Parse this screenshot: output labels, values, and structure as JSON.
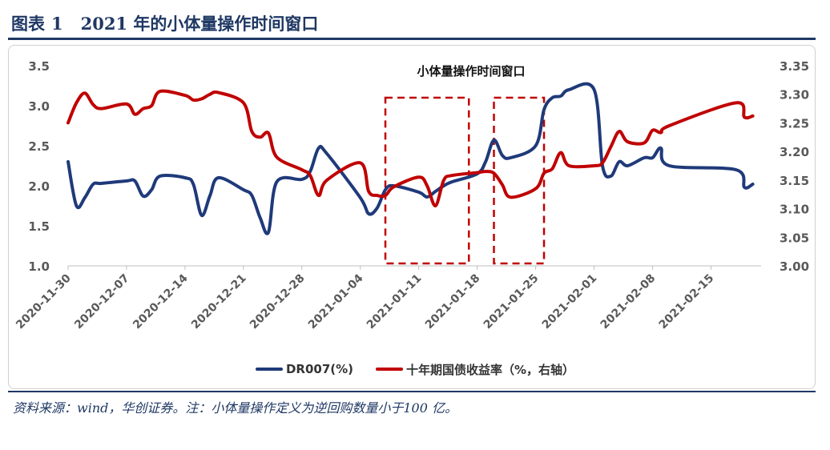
{
  "header": {
    "label": "图表",
    "number": "1",
    "title": "2021 年的小体量操作时间窗口"
  },
  "source": "资料来源：wind，华创证券。注：小体量操作定义为逆回购数量小于100 亿。",
  "chart_data": {
    "type": "line",
    "title": "小体量操作时间窗口",
    "x_start": "2020-11-30",
    "x_end": "2021-02-21",
    "x_ticks": [
      "2020-11-30",
      "2020-12-07",
      "2020-12-14",
      "2020-12-21",
      "2020-12-28",
      "2021-01-04",
      "2021-01-11",
      "2021-01-18",
      "2021-01-25",
      "2021-02-01",
      "2021-02-08",
      "2021-02-15"
    ],
    "y_left": {
      "min": 1.0,
      "max": 3.5,
      "ticks": [
        "1.0",
        "1.5",
        "2.0",
        "2.5",
        "3.0",
        "3.5"
      ]
    },
    "y_right": {
      "min": 3.0,
      "max": 3.35,
      "ticks": [
        "3.00",
        "3.05",
        "3.10",
        "3.15",
        "3.20",
        "3.25",
        "3.30",
        "3.35"
      ]
    },
    "grid": false,
    "legend_position": "bottom",
    "series": [
      {
        "name": "DR007(%)",
        "axis": "left",
        "color": "#1f3a7a",
        "points": [
          [
            "2020-11-30",
            2.3
          ],
          [
            "2020-12-01",
            1.75
          ],
          [
            "2020-12-02",
            1.85
          ],
          [
            "2020-12-03",
            2.02
          ],
          [
            "2020-12-04",
            2.03
          ],
          [
            "2020-12-07",
            2.06
          ],
          [
            "2020-12-08",
            2.06
          ],
          [
            "2020-12-09",
            1.87
          ],
          [
            "2020-12-10",
            1.95
          ],
          [
            "2020-12-11",
            2.12
          ],
          [
            "2020-12-14",
            2.1
          ],
          [
            "2020-12-15",
            2.02
          ],
          [
            "2020-12-16",
            1.63
          ],
          [
            "2020-12-17",
            1.88
          ],
          [
            "2020-12-18",
            2.1
          ],
          [
            "2020-12-21",
            1.95
          ],
          [
            "2020-12-22",
            1.88
          ],
          [
            "2020-12-23",
            1.6
          ],
          [
            "2020-12-24",
            1.42
          ],
          [
            "2020-12-25",
            2.05
          ],
          [
            "2020-12-28",
            2.08
          ],
          [
            "2020-12-29",
            2.18
          ],
          [
            "2020-12-30",
            2.47
          ],
          [
            "2020-12-31",
            2.4
          ],
          [
            "2021-01-04",
            1.85
          ],
          [
            "2021-01-05",
            1.65
          ],
          [
            "2021-01-06",
            1.72
          ],
          [
            "2021-01-07",
            1.95
          ],
          [
            "2021-01-08",
            2.0
          ],
          [
            "2021-01-11",
            1.92
          ],
          [
            "2021-01-12",
            1.86
          ],
          [
            "2021-01-13",
            1.93
          ],
          [
            "2021-01-14",
            2.0
          ],
          [
            "2021-01-15",
            2.05
          ],
          [
            "2021-01-18",
            2.15
          ],
          [
            "2021-01-19",
            2.3
          ],
          [
            "2021-01-20",
            2.57
          ],
          [
            "2021-01-21",
            2.38
          ],
          [
            "2021-01-22",
            2.35
          ],
          [
            "2021-01-25",
            2.5
          ],
          [
            "2021-01-26",
            2.95
          ],
          [
            "2021-01-27",
            3.1
          ],
          [
            "2021-01-28",
            3.12
          ],
          [
            "2021-01-29",
            3.2
          ],
          [
            "2021-02-01",
            3.2
          ],
          [
            "2021-02-02",
            2.25
          ],
          [
            "2021-02-03",
            2.12
          ],
          [
            "2021-02-04",
            2.3
          ],
          [
            "2021-02-05",
            2.25
          ],
          [
            "2021-02-07",
            2.35
          ],
          [
            "2021-02-08",
            2.35
          ],
          [
            "2021-02-09",
            2.47
          ],
          [
            "2021-02-10",
            2.25
          ],
          [
            "2021-02-18",
            2.2
          ],
          [
            "2021-02-19",
            1.98
          ],
          [
            "2021-02-20",
            2.02
          ]
        ]
      },
      {
        "name": "十年期国债收益率（%，右轴）",
        "axis": "right",
        "color": "#c00000",
        "points": [
          [
            "2020-11-30",
            3.25
          ],
          [
            "2020-12-01",
            3.285
          ],
          [
            "2020-12-02",
            3.302
          ],
          [
            "2020-12-03",
            3.282
          ],
          [
            "2020-12-04",
            3.275
          ],
          [
            "2020-12-07",
            3.283
          ],
          [
            "2020-12-08",
            3.265
          ],
          [
            "2020-12-09",
            3.275
          ],
          [
            "2020-12-10",
            3.28
          ],
          [
            "2020-12-11",
            3.305
          ],
          [
            "2020-12-14",
            3.298
          ],
          [
            "2020-12-15",
            3.29
          ],
          [
            "2020-12-16",
            3.292
          ],
          [
            "2020-12-17",
            3.3
          ],
          [
            "2020-12-18",
            3.303
          ],
          [
            "2020-12-21",
            3.285
          ],
          [
            "2020-12-22",
            3.235
          ],
          [
            "2020-12-23",
            3.225
          ],
          [
            "2020-12-24",
            3.232
          ],
          [
            "2020-12-25",
            3.19
          ],
          [
            "2020-12-28",
            3.168
          ],
          [
            "2020-12-29",
            3.158
          ],
          [
            "2020-12-30",
            3.123
          ],
          [
            "2020-12-31",
            3.15
          ],
          [
            "2021-01-04",
            3.18
          ],
          [
            "2021-01-05",
            3.13
          ],
          [
            "2021-01-06",
            3.123
          ],
          [
            "2021-01-07",
            3.123
          ],
          [
            "2021-01-08",
            3.138
          ],
          [
            "2021-01-11",
            3.155
          ],
          [
            "2021-01-12",
            3.14
          ],
          [
            "2021-01-13",
            3.105
          ],
          [
            "2021-01-14",
            3.15
          ],
          [
            "2021-01-15",
            3.158
          ],
          [
            "2021-01-18",
            3.163
          ],
          [
            "2021-01-19",
            3.165
          ],
          [
            "2021-01-20",
            3.162
          ],
          [
            "2021-01-21",
            3.142
          ],
          [
            "2021-01-22",
            3.12
          ],
          [
            "2021-01-25",
            3.135
          ],
          [
            "2021-01-26",
            3.162
          ],
          [
            "2021-01-27",
            3.17
          ],
          [
            "2021-01-28",
            3.198
          ],
          [
            "2021-01-29",
            3.175
          ],
          [
            "2021-02-01",
            3.175
          ],
          [
            "2021-02-02",
            3.18
          ],
          [
            "2021-02-03",
            3.208
          ],
          [
            "2021-02-04",
            3.235
          ],
          [
            "2021-02-05",
            3.217
          ],
          [
            "2021-02-07",
            3.215
          ],
          [
            "2021-02-08",
            3.237
          ],
          [
            "2021-02-09",
            3.233
          ],
          [
            "2021-02-10",
            3.245
          ],
          [
            "2021-02-18",
            3.285
          ],
          [
            "2021-02-19",
            3.26
          ],
          [
            "2021-02-20",
            3.262
          ]
        ]
      }
    ],
    "highlight_windows": [
      {
        "start": "2021-01-07",
        "end": "2021-01-17"
      },
      {
        "start": "2021-01-20",
        "end": "2021-01-26"
      }
    ]
  }
}
